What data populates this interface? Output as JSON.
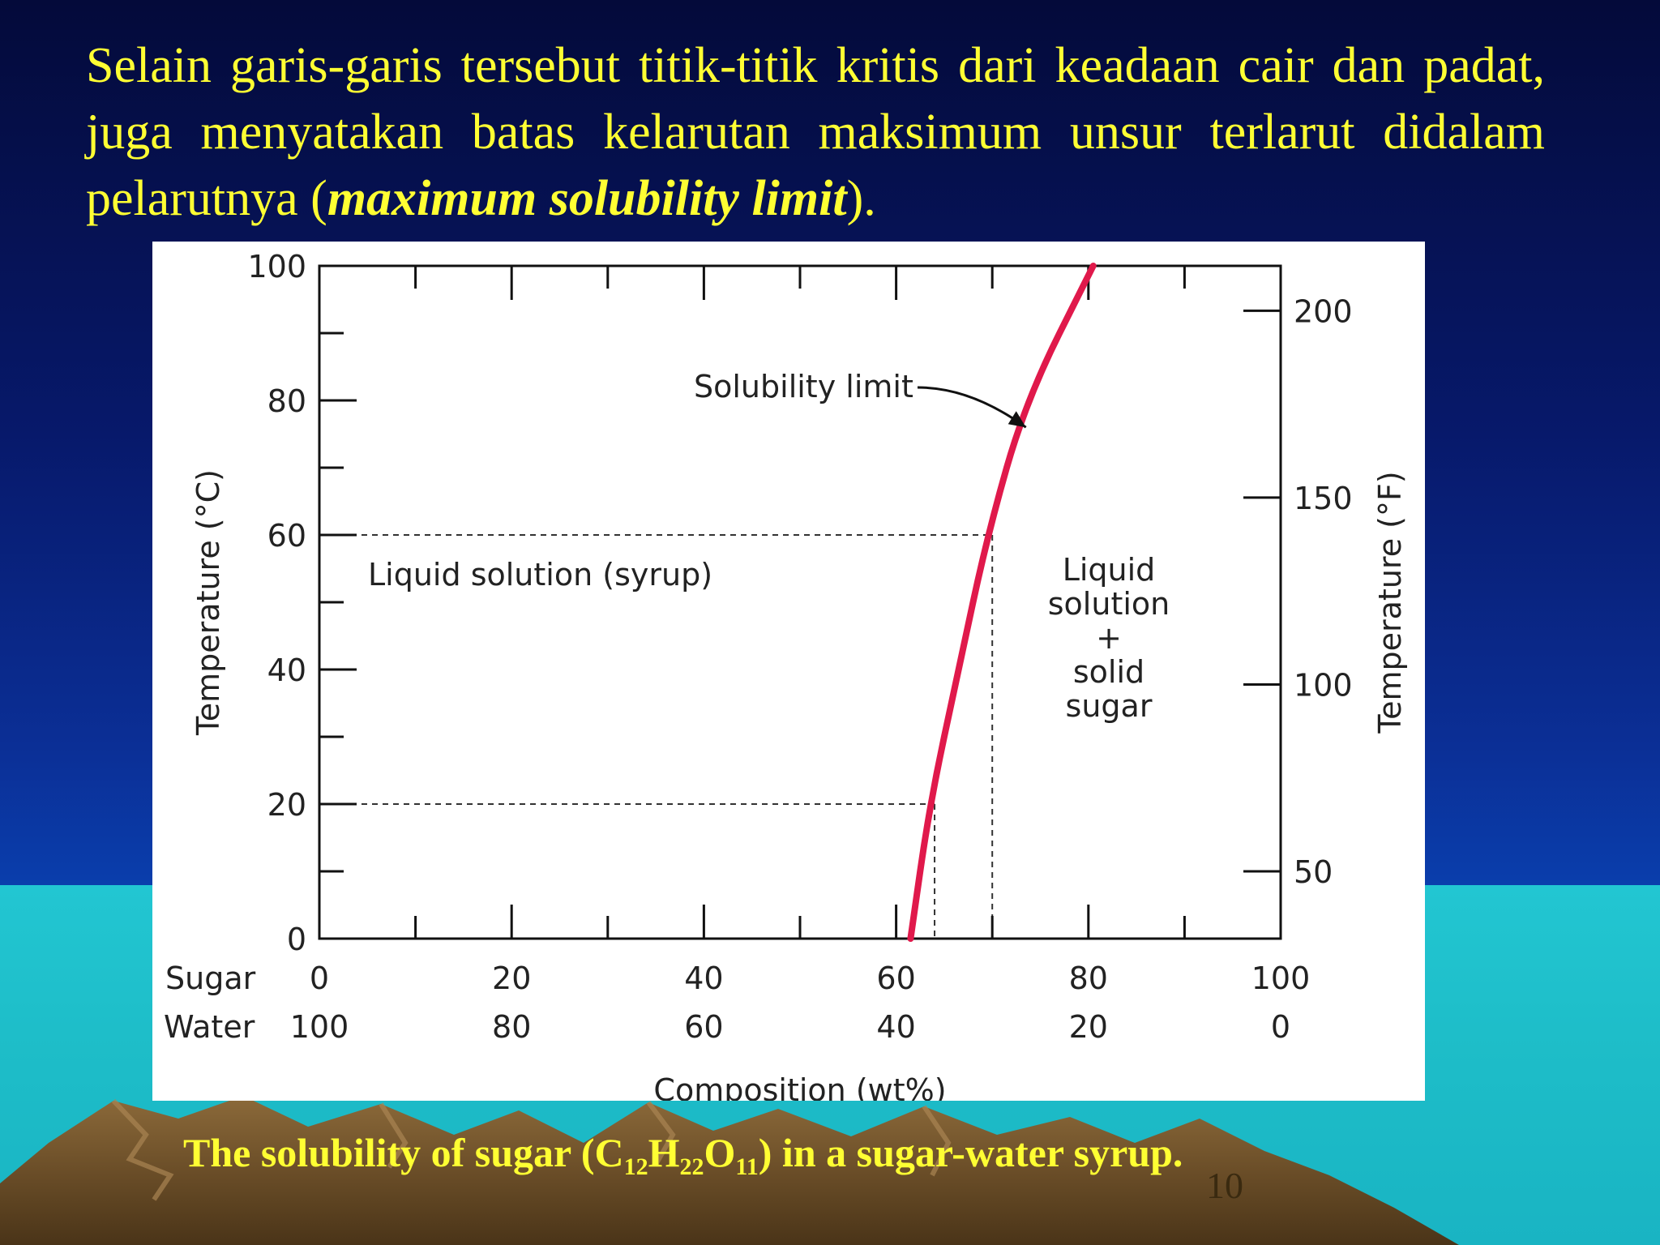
{
  "slide": {
    "intro_text_before": "Selain garis-garis tersebut titik-titik kritis dari keadaan cair dan padat, juga menyatakan batas kelarutan maksimum unsur terlarut didalam pelarutnya (",
    "intro_text_em": "maximum solubility limit",
    "intro_text_after": ").",
    "caption_part1": "The solubility of sugar (C",
    "caption_sub1": "12",
    "caption_part2": "H",
    "caption_sub2": "22",
    "caption_part3": "O",
    "caption_sub3": "11",
    "caption_part4": ") in a sugar-water syrup.",
    "slide_number": "10"
  },
  "colors": {
    "text_yellow": "#ffff33",
    "curve_red": "#e0194b",
    "axis_black": "#111111"
  },
  "chart_data": {
    "type": "line",
    "series": [
      {
        "name": "Solubility limit",
        "points": [
          [
            61.5,
            0
          ],
          [
            63.5,
            20
          ],
          [
            66.5,
            40
          ],
          [
            69.5,
            60
          ],
          [
            73.5,
            80
          ],
          [
            80.5,
            100
          ]
        ]
      }
    ],
    "xlim": [
      0,
      100
    ],
    "ylim": [
      0,
      100
    ],
    "right_axis_ylim_F": [
      32,
      212
    ],
    "x_ticks_sugar": [
      "0",
      "20",
      "40",
      "60",
      "80",
      "100"
    ],
    "x_ticks_water": [
      "100",
      "80",
      "60",
      "40",
      "20",
      "0"
    ],
    "x_tick_values": [
      0,
      20,
      40,
      60,
      80,
      100
    ],
    "y_ticks_left": [
      "0",
      "20",
      "40",
      "60",
      "80",
      "100"
    ],
    "y_tick_values_left": [
      0,
      20,
      40,
      60,
      80,
      100
    ],
    "y_ticks_right": [
      "50",
      "100",
      "150",
      "200"
    ],
    "y_tick_values_right_F": [
      50,
      100,
      150,
      200
    ],
    "row_label_sugar": "Sugar",
    "row_label_water": "Water",
    "xlabel": "Composition (wt%)",
    "ylabel_left": "Temperature (°C)",
    "ylabel_right": "Temperature (°F)",
    "reference_points": [
      {
        "x": 64,
        "y": 20
      },
      {
        "x": 70,
        "y": 60
      }
    ],
    "annotations": {
      "solubility_label": "Solubility limit",
      "solubility_target": {
        "x": 73.5,
        "y": 76
      },
      "region_left": "Liquid solution (syrup)",
      "region_right_lines": [
        "Liquid",
        "solution",
        "+",
        "solid",
        "sugar"
      ]
    }
  }
}
